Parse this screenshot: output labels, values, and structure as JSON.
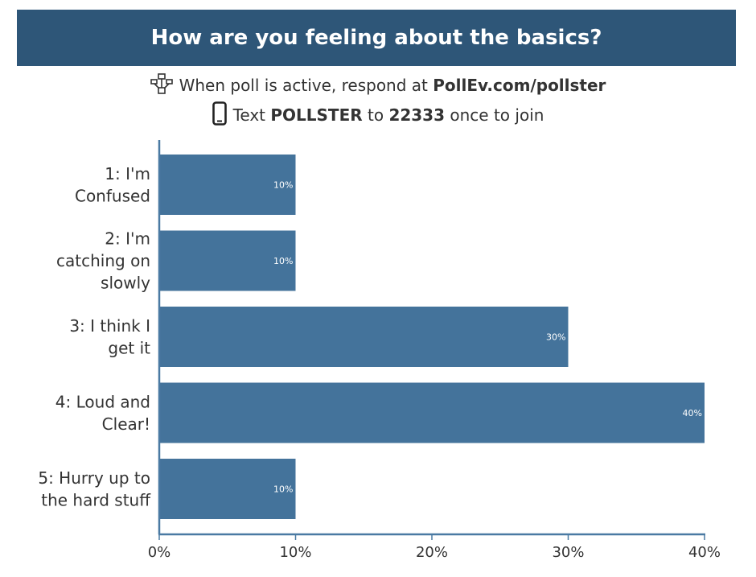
{
  "header": {
    "title": "How are you feeling about the basics?"
  },
  "instructions": {
    "web_prefix": "When poll is active, respond at",
    "web_url": "PollEv.com/pollster",
    "text_prefix": "Text",
    "text_keyword": "POLLSTER",
    "text_middle": "to",
    "text_number": "22333",
    "text_suffix": "once to join",
    "web_icon": "network-icon",
    "phone_icon": "phone-icon"
  },
  "colors": {
    "header_bg": "#2e5678",
    "bar": "#44739b",
    "axis": "#4a7aa3"
  },
  "chart_data": {
    "type": "bar",
    "orientation": "horizontal",
    "categories": [
      [
        "1: I'm",
        "Confused"
      ],
      [
        "2: I'm",
        "catching on",
        "slowly"
      ],
      [
        "3: I think I",
        "get it"
      ],
      [
        "4: Loud and",
        "Clear!"
      ],
      [
        "5: Hurry up to",
        "the hard stuff"
      ]
    ],
    "values": [
      10,
      10,
      30,
      40,
      10
    ],
    "data_labels": [
      "10%",
      "10%",
      "30%",
      "40%",
      "10%"
    ],
    "x_ticks": [
      0,
      10,
      20,
      30,
      40
    ],
    "x_tick_labels": [
      "0%",
      "10%",
      "20%",
      "30%",
      "40%"
    ],
    "xlim": [
      0,
      40
    ],
    "xlabel": "",
    "ylabel": "",
    "grid": false
  }
}
